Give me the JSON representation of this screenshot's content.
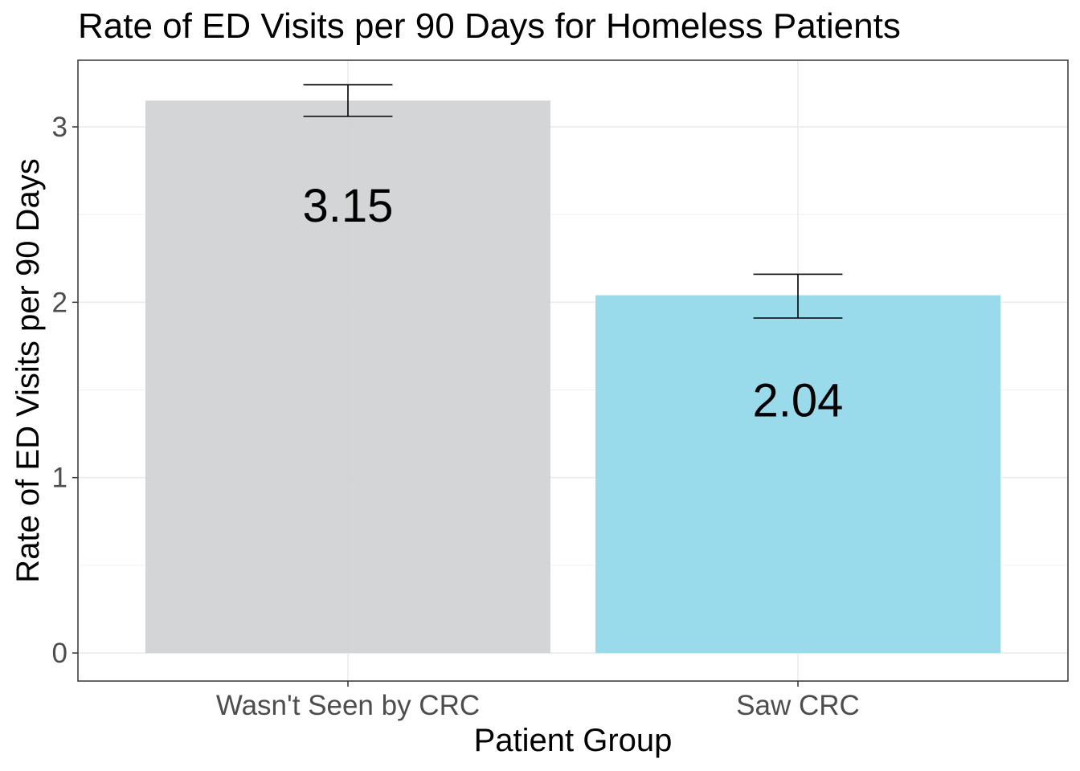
{
  "chart_data": {
    "type": "bar",
    "title": "Rate of ED Visits per 90 Days for Homeless Patients",
    "xlabel": "Patient Group",
    "ylabel": "Rate of ED Visits per 90 Days",
    "categories": [
      "Wasn't Seen by CRC",
      "Saw CRC"
    ],
    "values": [
      3.15,
      2.04
    ],
    "data_labels": [
      "3.15",
      "2.04"
    ],
    "error_bars": [
      {
        "low": 3.06,
        "high": 3.24
      },
      {
        "low": 1.91,
        "high": 2.16
      }
    ],
    "colors": [
      "#d1d3d4",
      "#95d9ea"
    ],
    "ylim": [
      -0.16,
      3.38
    ],
    "yticks": [
      0,
      1,
      2,
      3
    ],
    "ytick_labels": [
      "0",
      "1",
      "2",
      "3"
    ],
    "grid": true,
    "legend": "none"
  }
}
